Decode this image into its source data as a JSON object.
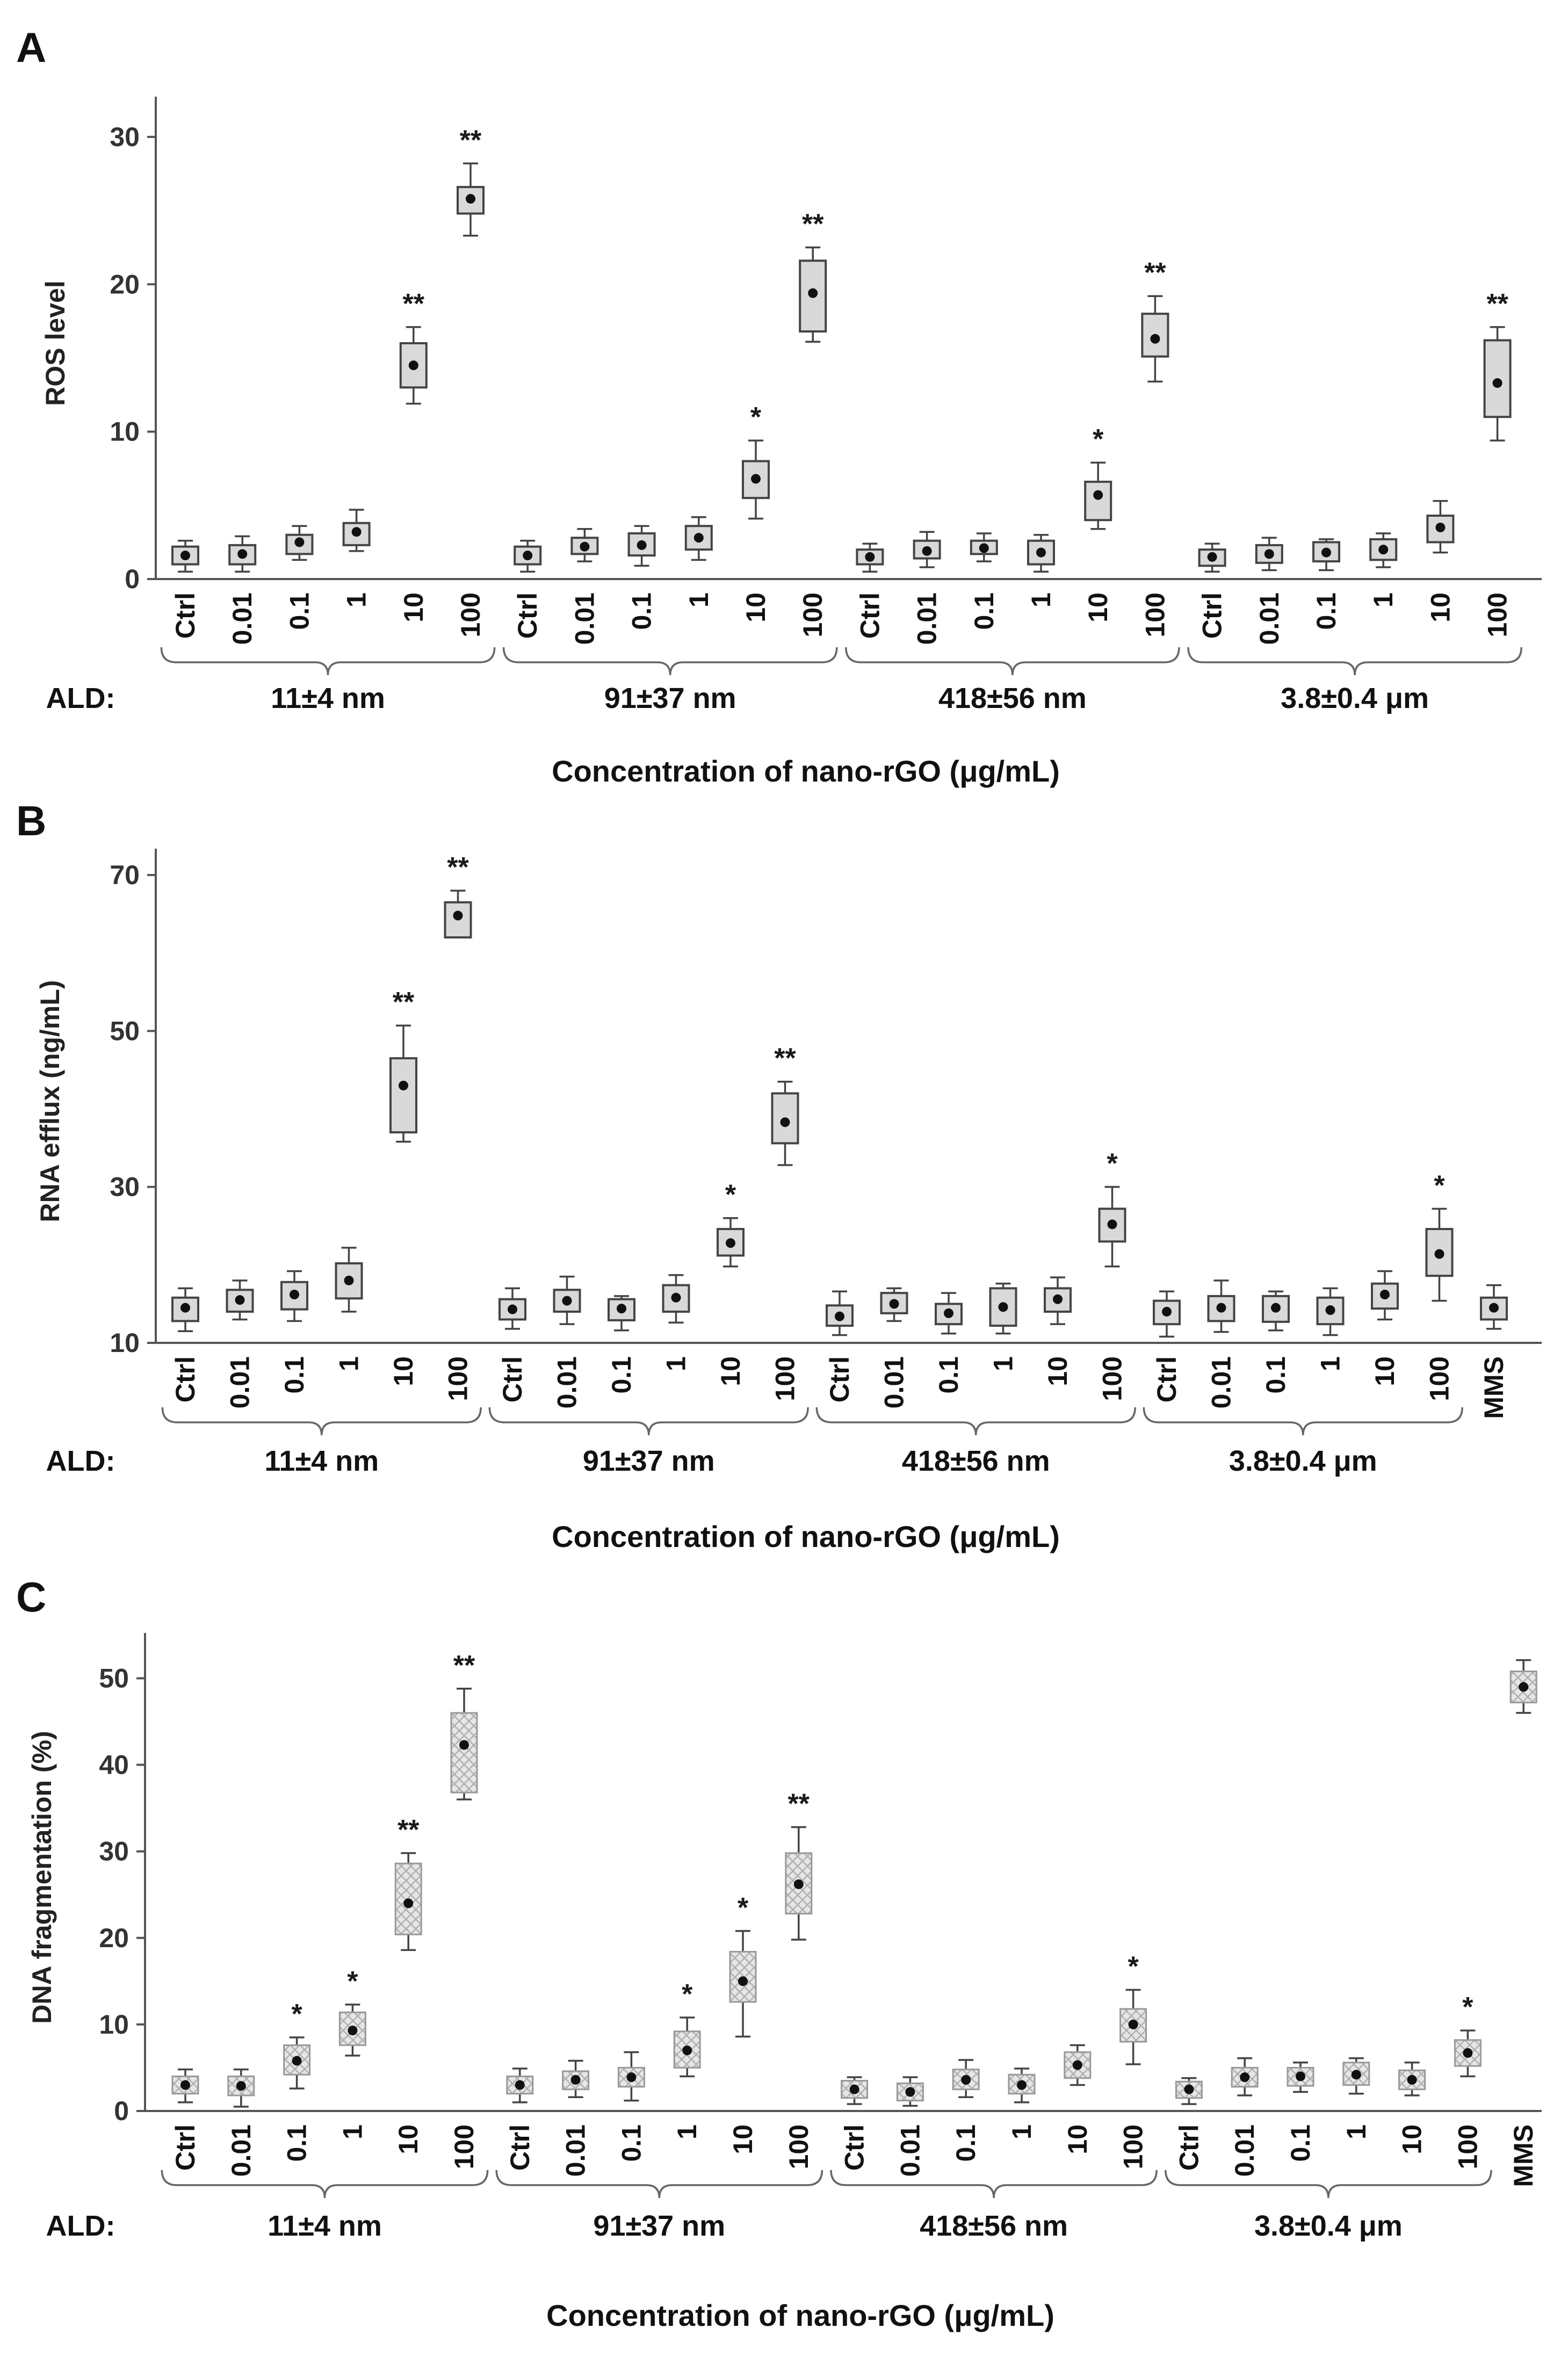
{
  "chart_data": [
    {
      "type": "box",
      "panel": "A",
      "ylabel": "ROS level",
      "xlabel": "Concentration of nano-rGO (μg/mL)",
      "group_prefix": "ALD:",
      "ylim": [
        0,
        32
      ],
      "yticks": [
        0,
        10,
        20,
        30
      ],
      "box_style": "solid",
      "groups": [
        {
          "label": "11±4 nm",
          "categories": [
            "Ctrl",
            "0.01",
            "0.1",
            "1",
            "10",
            "100"
          ],
          "mean": [
            1.6,
            1.7,
            2.5,
            3.2,
            14.5,
            25.8
          ],
          "q1": [
            1.0,
            1.0,
            1.7,
            2.3,
            13.0,
            24.8
          ],
          "q3": [
            2.2,
            2.3,
            3.0,
            3.8,
            16.0,
            26.6
          ],
          "min": [
            0.5,
            0.5,
            1.3,
            1.9,
            11.9,
            23.3
          ],
          "max": [
            2.6,
            2.9,
            3.6,
            4.7,
            17.1,
            28.2
          ],
          "sig": [
            "",
            "",
            "",
            "",
            "**",
            "**"
          ]
        },
        {
          "label": "91±37 nm",
          "categories": [
            "Ctrl",
            "0.01",
            "0.1",
            "1",
            "10",
            "100"
          ],
          "mean": [
            1.6,
            2.2,
            2.3,
            2.8,
            6.8,
            19.4
          ],
          "q1": [
            1.0,
            1.7,
            1.6,
            2.0,
            5.5,
            16.8
          ],
          "q3": [
            2.2,
            2.8,
            3.1,
            3.6,
            8.0,
            21.6
          ],
          "min": [
            0.5,
            1.2,
            0.9,
            1.3,
            4.1,
            16.1
          ],
          "max": [
            2.6,
            3.4,
            3.6,
            4.2,
            9.4,
            22.5
          ],
          "sig": [
            "",
            "",
            "",
            "",
            "*",
            "**"
          ]
        },
        {
          "label": "418±56 nm",
          "categories": [
            "Ctrl",
            "0.01",
            "0.1",
            "1",
            "10",
            "100"
          ],
          "mean": [
            1.5,
            1.9,
            2.1,
            1.8,
            5.7,
            16.3
          ],
          "q1": [
            1.0,
            1.4,
            1.7,
            1.0,
            4.0,
            15.1
          ],
          "q3": [
            2.0,
            2.6,
            2.6,
            2.6,
            6.6,
            18.0
          ],
          "min": [
            0.5,
            0.8,
            1.2,
            0.5,
            3.4,
            13.4
          ],
          "max": [
            2.4,
            3.2,
            3.1,
            3.0,
            7.9,
            19.2
          ],
          "sig": [
            "",
            "",
            "",
            "",
            "*",
            "**"
          ]
        },
        {
          "label": "3.8±0.4 μm",
          "categories": [
            "Ctrl",
            "0.01",
            "0.1",
            "1",
            "10",
            "100"
          ],
          "mean": [
            1.5,
            1.7,
            1.8,
            2.0,
            3.5,
            13.3
          ],
          "q1": [
            0.9,
            1.1,
            1.2,
            1.3,
            2.5,
            11.0
          ],
          "q3": [
            2.0,
            2.3,
            2.5,
            2.7,
            4.3,
            16.2
          ],
          "min": [
            0.5,
            0.6,
            0.6,
            0.8,
            1.8,
            9.4
          ],
          "max": [
            2.4,
            2.8,
            2.7,
            3.1,
            5.3,
            17.1
          ],
          "sig": [
            "",
            "",
            "",
            "",
            "",
            "**"
          ]
        }
      ]
    },
    {
      "type": "box",
      "panel": "B",
      "ylabel": "RNA efflux (ng/mL)",
      "xlabel": "Concentration of nano-rGO (μg/mL)",
      "group_prefix": "ALD:",
      "ylim": [
        10,
        72
      ],
      "yticks": [
        10,
        30,
        50,
        70
      ],
      "box_style": "solid",
      "groups": [
        {
          "label": "11±4 nm",
          "categories": [
            "Ctrl",
            "0.01",
            "0.1",
            "1",
            "10",
            "100"
          ],
          "mean": [
            14.5,
            15.5,
            16.2,
            18.0,
            43.0,
            64.8
          ],
          "q1": [
            12.8,
            14.0,
            14.3,
            15.7,
            37.0,
            62.0
          ],
          "q3": [
            15.8,
            16.8,
            17.8,
            20.2,
            46.5,
            66.5
          ],
          "min": [
            11.5,
            13.0,
            12.8,
            14.0,
            35.8,
            62.0
          ],
          "max": [
            17.0,
            18.0,
            19.2,
            22.2,
            50.7,
            68.0
          ],
          "sig": [
            "",
            "",
            "",
            "",
            "**",
            "**"
          ]
        },
        {
          "label": "91±37 nm",
          "categories": [
            "Ctrl",
            "0.01",
            "0.1",
            "1",
            "10",
            "100"
          ],
          "mean": [
            14.3,
            15.4,
            14.4,
            15.8,
            22.8,
            38.3
          ],
          "q1": [
            13.0,
            14.0,
            12.9,
            14.0,
            21.2,
            35.6
          ],
          "q3": [
            15.6,
            16.8,
            15.6,
            17.4,
            24.6,
            42.0
          ],
          "min": [
            11.8,
            12.4,
            11.6,
            12.6,
            19.8,
            32.8
          ],
          "max": [
            17.0,
            18.5,
            16.0,
            18.7,
            26.0,
            43.5
          ],
          "sig": [
            "",
            "",
            "",
            "",
            "*",
            "**"
          ]
        },
        {
          "label": "418±56 nm",
          "categories": [
            "Ctrl",
            "0.01",
            "0.1",
            "1",
            "10",
            "100"
          ],
          "mean": [
            13.4,
            15.0,
            13.8,
            14.6,
            15.6,
            25.2
          ],
          "q1": [
            12.2,
            13.8,
            12.4,
            12.2,
            14.0,
            23.0
          ],
          "q3": [
            14.8,
            16.4,
            15.0,
            17.0,
            17.0,
            27.2
          ],
          "min": [
            11.0,
            12.8,
            11.2,
            11.2,
            12.4,
            19.8
          ],
          "max": [
            16.6,
            17.0,
            16.4,
            17.6,
            18.4,
            30.0
          ],
          "sig": [
            "",
            "",
            "",
            "",
            "",
            "*"
          ]
        },
        {
          "label": "3.8±0.4 μm",
          "categories": [
            "Ctrl",
            "0.01",
            "0.1",
            "1",
            "10",
            "100",
            "MMS"
          ],
          "mean": [
            14.0,
            14.5,
            14.5,
            14.2,
            16.2,
            21.4,
            14.5
          ],
          "q1": [
            12.4,
            12.8,
            12.7,
            12.4,
            14.4,
            18.6,
            13.0
          ],
          "q3": [
            15.4,
            16.0,
            16.0,
            15.8,
            17.6,
            24.6,
            15.8
          ],
          "min": [
            10.8,
            11.4,
            11.6,
            11.0,
            13.0,
            15.4,
            11.8
          ],
          "max": [
            16.6,
            18.0,
            16.6,
            17.0,
            19.2,
            27.2,
            17.4
          ],
          "sig": [
            "",
            "",
            "",
            "",
            "",
            "*",
            ""
          ]
        }
      ]
    },
    {
      "type": "box",
      "panel": "C",
      "ylabel": "DNA fragmentation (%)",
      "xlabel": "Concentration of nano-rGO (μg/mL)",
      "group_prefix": "ALD:",
      "ylim": [
        0,
        54
      ],
      "yticks": [
        0,
        10,
        20,
        30,
        40,
        50
      ],
      "box_style": "hatched",
      "groups": [
        {
          "label": "11±4 nm",
          "categories": [
            "Ctrl",
            "0.01",
            "0.1",
            "1",
            "10",
            "100"
          ],
          "mean": [
            3.0,
            2.9,
            5.8,
            9.3,
            24.0,
            42.3
          ],
          "q1": [
            2.0,
            1.8,
            4.2,
            7.6,
            20.4,
            36.8
          ],
          "q3": [
            4.0,
            4.0,
            7.6,
            11.4,
            28.6,
            46.0
          ],
          "min": [
            1.0,
            0.5,
            2.6,
            6.4,
            18.6,
            36.0
          ],
          "max": [
            4.8,
            4.8,
            8.5,
            12.3,
            29.8,
            48.8
          ],
          "sig": [
            "",
            "",
            "*",
            "*",
            "**",
            "**"
          ]
        },
        {
          "label": "91±37 nm",
          "categories": [
            "Ctrl",
            "0.01",
            "0.1",
            "1",
            "10",
            "100"
          ],
          "mean": [
            3.0,
            3.6,
            3.9,
            7.0,
            15.0,
            26.2
          ],
          "q1": [
            2.0,
            2.5,
            2.8,
            5.0,
            12.6,
            22.8
          ],
          "q3": [
            4.0,
            4.6,
            5.0,
            9.2,
            18.4,
            29.8
          ],
          "min": [
            1.0,
            1.6,
            1.2,
            4.0,
            8.6,
            19.8
          ],
          "max": [
            4.9,
            5.8,
            6.8,
            10.8,
            20.8,
            32.8
          ],
          "sig": [
            "",
            "",
            "",
            "*",
            "*",
            "**"
          ]
        },
        {
          "label": "418±56 nm",
          "categories": [
            "Ctrl",
            "0.01",
            "0.1",
            "1",
            "10",
            "100"
          ],
          "mean": [
            2.5,
            2.2,
            3.6,
            3.0,
            5.3,
            10.0
          ],
          "q1": [
            1.5,
            1.2,
            2.5,
            2.0,
            3.8,
            8.0
          ],
          "q3": [
            3.5,
            3.2,
            4.8,
            4.2,
            6.8,
            11.8
          ],
          "min": [
            0.8,
            0.6,
            1.6,
            1.0,
            3.0,
            5.4
          ],
          "max": [
            3.9,
            3.9,
            5.9,
            4.9,
            7.6,
            14.0
          ],
          "sig": [
            "",
            "",
            "",
            "",
            "",
            "*"
          ]
        },
        {
          "label": "3.8±0.4 μm",
          "categories": [
            "Ctrl",
            "0.01",
            "0.1",
            "1",
            "10",
            "100",
            "MMS"
          ],
          "mean": [
            2.5,
            3.9,
            4.0,
            4.2,
            3.6,
            6.7,
            49.0
          ],
          "q1": [
            1.5,
            2.8,
            2.9,
            3.0,
            2.5,
            5.2,
            47.2
          ],
          "q3": [
            3.4,
            5.0,
            5.0,
            5.6,
            4.7,
            8.2,
            50.8
          ],
          "min": [
            0.8,
            1.8,
            2.2,
            2.0,
            1.8,
            4.0,
            46.0
          ],
          "max": [
            3.8,
            6.1,
            5.6,
            6.1,
            5.6,
            9.3,
            52.1
          ],
          "sig": [
            "",
            "",
            "",
            "",
            "",
            "*",
            ""
          ]
        }
      ]
    }
  ]
}
